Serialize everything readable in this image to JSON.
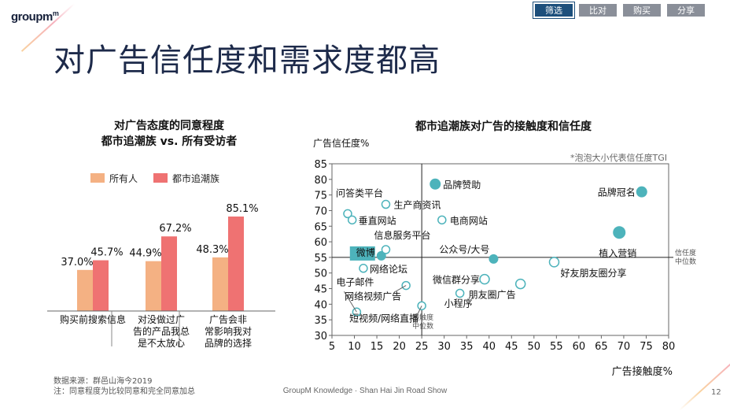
{
  "header": {
    "logo": "groupm",
    "tabs": [
      "筛选",
      "比对",
      "购买",
      "分享"
    ],
    "title": "对广告信任度和需求度都高"
  },
  "footer": {
    "source_line1": "数据来源：群邑山海今2019",
    "source_line2": "注：同意程度为比较同意和完全同意加总",
    "center": "GroupM Knowledge · Shan Hai Jin Road Show",
    "page": "12"
  },
  "chart_data": [
    {
      "type": "bar",
      "title_line1": "对广告态度的同意程度",
      "title_line2": "都市追潮族 vs. 所有受访者",
      "categories": [
        [
          "购买前搜索信息"
        ],
        [
          "对没做过广",
          "告的产品我总",
          "是不太放心"
        ],
        [
          "广告会非",
          "常影响我对",
          "品牌的选择"
        ]
      ],
      "series": [
        {
          "name": "所有人",
          "color": "#f4b183",
          "values": [
            37.0,
            44.9,
            48.3
          ],
          "labels": [
            "37.0%",
            "44.9%",
            "48.3%"
          ]
        },
        {
          "name": "都市追潮族",
          "color": "#ef7272",
          "values": [
            45.7,
            67.2,
            85.1
          ],
          "labels": [
            "45.7%",
            "67.2%",
            "85.1%"
          ]
        }
      ],
      "ylim": [
        0,
        90
      ]
    },
    {
      "type": "scatter",
      "title": "都市追潮族对广告的接触度和信任度",
      "xlabel": "广告接触度%",
      "ylabel": "广告信任度%",
      "note": "*泡泡大小代表信任度TGI",
      "xlim": [
        5,
        80
      ],
      "ylim": [
        30,
        85
      ],
      "xticks": [
        5,
        10,
        15,
        20,
        25,
        30,
        35,
        40,
        45,
        50,
        55,
        60,
        65,
        70,
        75,
        80
      ],
      "yticks": [
        30,
        35,
        40,
        45,
        50,
        55,
        60,
        65,
        70,
        75,
        80,
        85
      ],
      "x_median_value": 25,
      "y_median_value": 55,
      "x_median_label": [
        "接触度",
        "中位数"
      ],
      "y_median_label": [
        "信任度",
        "中位数"
      ],
      "points": [
        {
          "label": "品牌赞助",
          "x": 28,
          "y": 78.5,
          "filled": true,
          "size": 7
        },
        {
          "label": "品牌冠名",
          "x": 74,
          "y": 76,
          "filled": true,
          "size": 7
        },
        {
          "label": "植入营销",
          "x": 69,
          "y": 63,
          "filled": true,
          "size": 8
        },
        {
          "label": "公众号/大号",
          "x": 41,
          "y": 54.5,
          "filled": true,
          "size": 6
        },
        {
          "label": "微博",
          "x": 16,
          "y": 55.5,
          "filled": true,
          "size": 6
        },
        {
          "label": "问答类平台",
          "x": 8.5,
          "y": 69,
          "filled": false,
          "size": 5
        },
        {
          "label": "垂直网站",
          "x": 9.5,
          "y": 67,
          "filled": false,
          "size": 5
        },
        {
          "label": "生产商资讯",
          "x": 17,
          "y": 72,
          "filled": false,
          "size": 5
        },
        {
          "label": "电商网站",
          "x": 29.5,
          "y": 67,
          "filled": false,
          "size": 5
        },
        {
          "label": "信息服务平台",
          "x": 17,
          "y": 57.5,
          "filled": false,
          "size": 5
        },
        {
          "label": "网络论坛",
          "x": 12,
          "y": 51.5,
          "filled": false,
          "size": 5
        },
        {
          "label": "好友朋友圈分享",
          "x": 54.5,
          "y": 53.5,
          "filled": false,
          "size": 6
        },
        {
          "label": "微信群分享",
          "x": 39,
          "y": 48,
          "filled": false,
          "size": 6
        },
        {
          "label": "朋友圈广告",
          "x": 47,
          "y": 46.5,
          "filled": false,
          "size": 6
        },
        {
          "label": "网络视频广告",
          "x": 21.5,
          "y": 46,
          "filled": false,
          "size": 5
        },
        {
          "label": "电子邮件",
          "x": 10.5,
          "y": 37.5,
          "filled": false,
          "size": 5
        },
        {
          "label": "小程序",
          "x": 33.5,
          "y": 43.5,
          "filled": false,
          "size": 5
        },
        {
          "label": "短视频/网络直播",
          "x": 25,
          "y": 39.5,
          "filled": false,
          "size": 5
        }
      ]
    }
  ]
}
